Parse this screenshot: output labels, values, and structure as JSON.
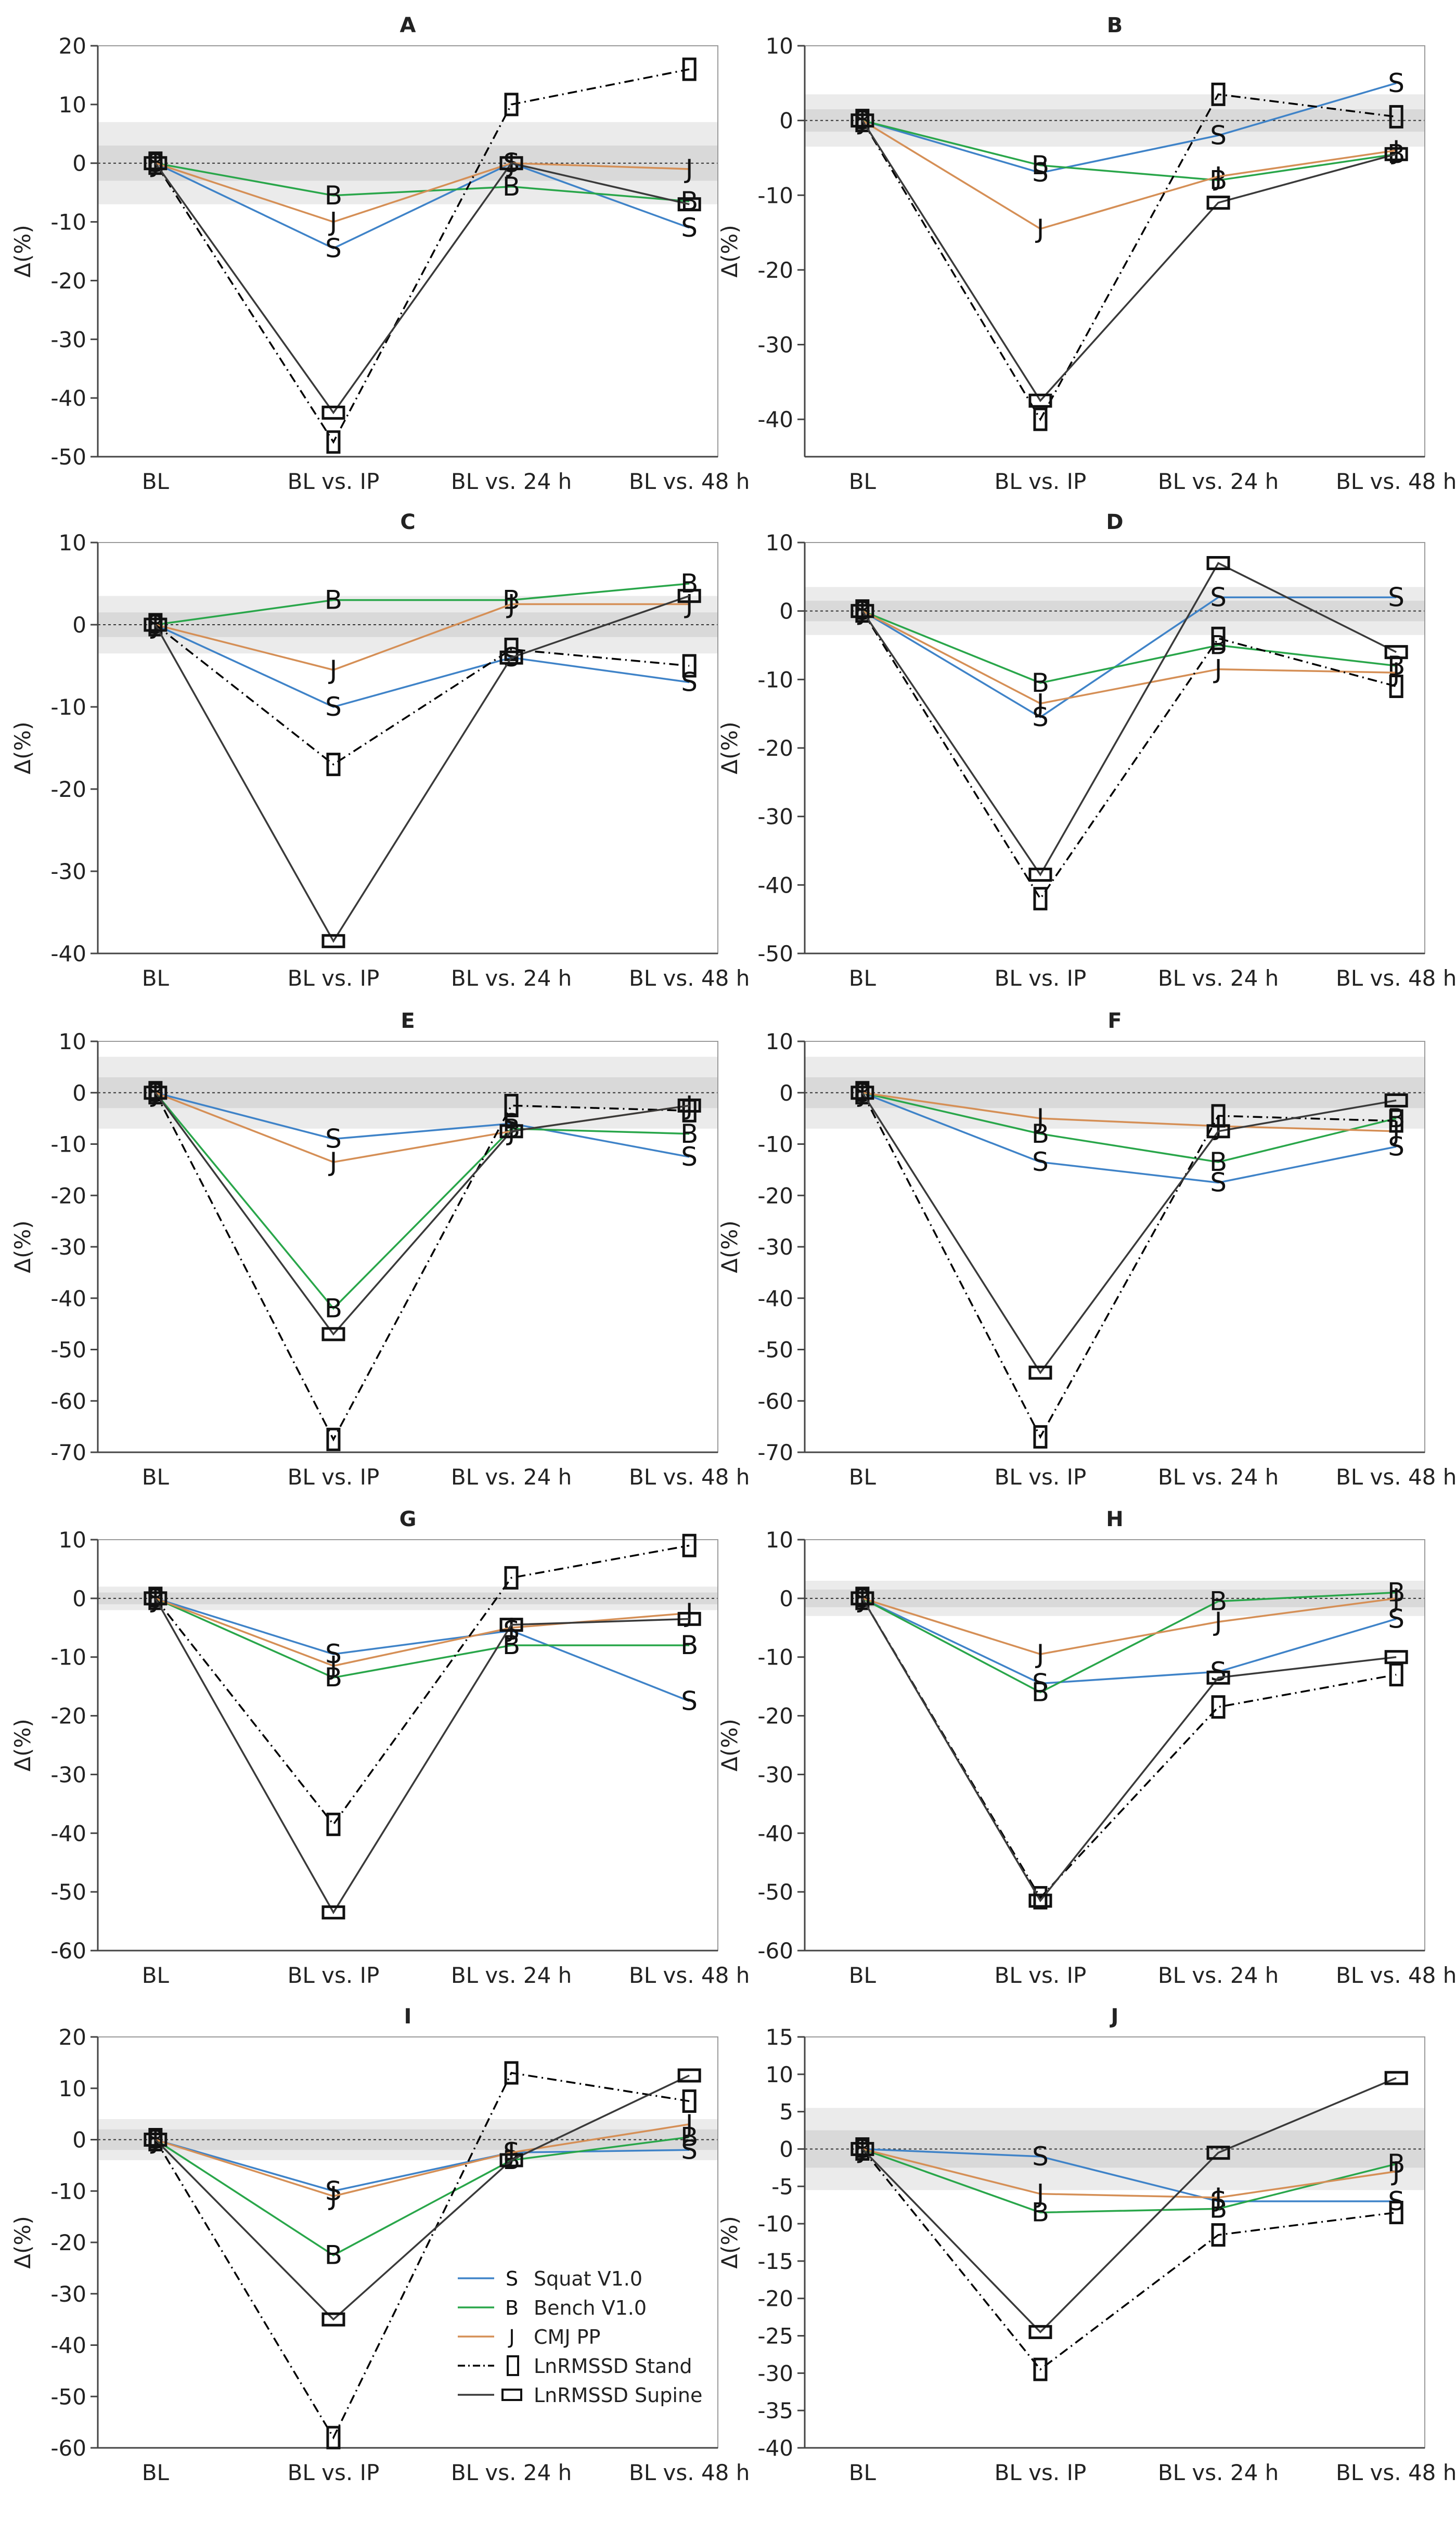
{
  "figure": {
    "categories": [
      "BL",
      "BL vs. IP",
      "BL vs. 24 h",
      "BL vs. 48 h"
    ],
    "ylabel": "Δ(%)",
    "series_styles": [
      {
        "key": "squat",
        "color": "#3f83c8",
        "marker": "S",
        "dash": ""
      },
      {
        "key": "bench",
        "color": "#29a64a",
        "marker": "B",
        "dash": ""
      },
      {
        "key": "cmj",
        "color": "#d58f56",
        "marker": "J",
        "dash": ""
      },
      {
        "key": "stand",
        "color": "#000000",
        "marker": "rect-v",
        "dash": "18,8,3,8"
      },
      {
        "key": "supine",
        "color": "#3a3a3a",
        "marker": "rect-h",
        "dash": ""
      }
    ],
    "legend": {
      "entries": [
        {
          "symbol": "S",
          "label": "Squat V1.0"
        },
        {
          "symbol": "B",
          "label": "Bench V1.0"
        },
        {
          "symbol": "J",
          "label": "CMJ PP"
        },
        {
          "symbol": "",
          "label": "LnRMSSD Stand"
        },
        {
          "symbol": "",
          "label": "LnRMSSD Supine"
        }
      ]
    },
    "colors": {
      "band_outer": "#ebebeb",
      "band_inner": "#d9d9d9",
      "axis": "#444444",
      "text": "#222222"
    }
  },
  "chart_data": [
    {
      "type": "line",
      "title": "A",
      "ylim": [
        -50,
        20
      ],
      "yticks": [
        20,
        10,
        0,
        -10,
        -20,
        -30,
        -40,
        -50
      ],
      "band": [
        -7,
        7
      ],
      "band_inner": [
        -3,
        3
      ],
      "series": [
        {
          "name": "Squat V1.0",
          "values": [
            0,
            -14.5,
            0,
            -11
          ]
        },
        {
          "name": "Bench V1.0",
          "values": [
            0,
            -5.5,
            -4,
            -6.5
          ]
        },
        {
          "name": "CMJ PP",
          "values": [
            0,
            -10,
            0,
            -1
          ]
        },
        {
          "name": "LnRMSSD Stand",
          "values": [
            0,
            -47.5,
            10,
            16
          ]
        },
        {
          "name": "LnRMSSD Supine",
          "values": [
            0,
            -42.5,
            0,
            -7
          ]
        }
      ]
    },
    {
      "type": "line",
      "title": "B",
      "ylim": [
        -45,
        10
      ],
      "yticks": [
        10,
        0,
        -10,
        -20,
        -30,
        -40
      ],
      "band": [
        -3.5,
        3.5
      ],
      "band_inner": [
        -1.5,
        1.5
      ],
      "series": [
        {
          "name": "Squat V1.0",
          "values": [
            0,
            -7,
            -2,
            5
          ]
        },
        {
          "name": "Bench V1.0",
          "values": [
            0,
            -6,
            -8,
            -4.5
          ]
        },
        {
          "name": "CMJ PP",
          "values": [
            0,
            -14.5,
            -7.5,
            -4
          ]
        },
        {
          "name": "LnRMSSD Stand",
          "values": [
            0,
            -40,
            3.5,
            0.5
          ]
        },
        {
          "name": "LnRMSSD Supine",
          "values": [
            0,
            -37.5,
            -11,
            -4.5
          ]
        }
      ]
    },
    {
      "type": "line",
      "title": "C",
      "ylim": [
        -40,
        10
      ],
      "yticks": [
        10,
        0,
        -10,
        -20,
        -30,
        -40
      ],
      "band": [
        -3.5,
        3.5
      ],
      "band_inner": [
        -1.5,
        1.5
      ],
      "series": [
        {
          "name": "Squat V1.0",
          "values": [
            0,
            -10,
            -4,
            -7
          ]
        },
        {
          "name": "Bench V1.0",
          "values": [
            0,
            3,
            3,
            5
          ]
        },
        {
          "name": "CMJ PP",
          "values": [
            0,
            -5.5,
            2.5,
            2.5
          ]
        },
        {
          "name": "LnRMSSD Stand",
          "values": [
            0,
            -17,
            -3,
            -5
          ]
        },
        {
          "name": "LnRMSSD Supine",
          "values": [
            0,
            -38.5,
            -4,
            3.5
          ]
        }
      ]
    },
    {
      "type": "line",
      "title": "D",
      "ylim": [
        -50,
        10
      ],
      "yticks": [
        10,
        0,
        -10,
        -20,
        -30,
        -40,
        -50
      ],
      "band": [
        -3.5,
        3.5
      ],
      "band_inner": [
        -1.5,
        1.5
      ],
      "series": [
        {
          "name": "Squat V1.0",
          "values": [
            0,
            -15.5,
            2,
            2
          ]
        },
        {
          "name": "Bench V1.0",
          "values": [
            0,
            -10.5,
            -5,
            -8
          ]
        },
        {
          "name": "CMJ PP",
          "values": [
            0,
            -13.5,
            -8.5,
            -9
          ]
        },
        {
          "name": "LnRMSSD Stand",
          "values": [
            0,
            -42,
            -4,
            -11
          ]
        },
        {
          "name": "LnRMSSD Supine",
          "values": [
            0,
            -38.5,
            7,
            -6
          ]
        }
      ]
    },
    {
      "type": "line",
      "title": "E",
      "ylim": [
        -70,
        10
      ],
      "yticks": [
        10,
        0,
        -10,
        -20,
        -30,
        -40,
        -50,
        -60,
        -70
      ],
      "band": [
        -7,
        7
      ],
      "band_inner": [
        -3,
        3
      ],
      "series": [
        {
          "name": "Squat V1.0",
          "values": [
            0,
            -9,
            -6,
            -12.5
          ]
        },
        {
          "name": "Bench V1.0",
          "values": [
            0,
            -42,
            -7,
            -8
          ]
        },
        {
          "name": "CMJ PP",
          "values": [
            0,
            -13.5,
            -7.5,
            -2.5
          ]
        },
        {
          "name": "LnRMSSD Stand",
          "values": [
            0,
            -67.5,
            -2.5,
            -3.5
          ]
        },
        {
          "name": "LnRMSSD Supine",
          "values": [
            0,
            -47,
            -7.5,
            -2.5
          ]
        }
      ]
    },
    {
      "type": "line",
      "title": "F",
      "ylim": [
        -70,
        10
      ],
      "yticks": [
        10,
        0,
        -10,
        -20,
        -30,
        -40,
        -50,
        -60,
        -70
      ],
      "band": [
        -7,
        7
      ],
      "band_inner": [
        -3,
        3
      ],
      "series": [
        {
          "name": "Squat V1.0",
          "values": [
            0,
            -13.5,
            -17.5,
            -10.5
          ]
        },
        {
          "name": "Bench V1.0",
          "values": [
            0,
            -8,
            -13.5,
            -5
          ]
        },
        {
          "name": "CMJ PP",
          "values": [
            0,
            -5,
            -6.5,
            -7.5
          ]
        },
        {
          "name": "LnRMSSD Stand",
          "values": [
            0,
            -67,
            -4.5,
            -5.5
          ]
        },
        {
          "name": "LnRMSSD Supine",
          "values": [
            0,
            -54.5,
            -7.5,
            -1.5
          ]
        }
      ]
    },
    {
      "type": "line",
      "title": "G",
      "ylim": [
        -60,
        10
      ],
      "yticks": [
        10,
        0,
        -10,
        -20,
        -30,
        -40,
        -50,
        -60
      ],
      "band": [
        -2,
        2
      ],
      "band_inner": [
        -1,
        1
      ],
      "series": [
        {
          "name": "Squat V1.0",
          "values": [
            0,
            -9.5,
            -5.5,
            -17.5
          ]
        },
        {
          "name": "Bench V1.0",
          "values": [
            0,
            -13.5,
            -8,
            -8
          ]
        },
        {
          "name": "CMJ PP",
          "values": [
            0,
            -11.5,
            -5,
            -2.5
          ]
        },
        {
          "name": "LnRMSSD Stand",
          "values": [
            0,
            -38.5,
            3.5,
            9
          ]
        },
        {
          "name": "LnRMSSD Supine",
          "values": [
            0,
            -53.5,
            -4.5,
            -3.5
          ]
        }
      ]
    },
    {
      "type": "line",
      "title": "H",
      "ylim": [
        -60,
        10
      ],
      "yticks": [
        10,
        0,
        -10,
        -20,
        -30,
        -40,
        -50,
        -60
      ],
      "band": [
        -3,
        3
      ],
      "band_inner": [
        -1.5,
        1.5
      ],
      "series": [
        {
          "name": "Squat V1.0",
          "values": [
            0,
            -14.5,
            -12.5,
            -3.5
          ]
        },
        {
          "name": "Bench V1.0",
          "values": [
            0,
            -16,
            -0.5,
            1
          ]
        },
        {
          "name": "CMJ PP",
          "values": [
            0,
            -9.5,
            -4,
            0
          ]
        },
        {
          "name": "LnRMSSD Stand",
          "values": [
            0,
            -51,
            -18.5,
            -13
          ]
        },
        {
          "name": "LnRMSSD Supine",
          "values": [
            0,
            -51.5,
            -13.5,
            -10
          ]
        }
      ]
    },
    {
      "type": "line",
      "title": "I",
      "ylim": [
        -60,
        20
      ],
      "yticks": [
        20,
        10,
        0,
        -10,
        -20,
        -30,
        -40,
        -50,
        -60
      ],
      "band": [
        -4,
        4
      ],
      "band_inner": [
        -2,
        2
      ],
      "series": [
        {
          "name": "Squat V1.0",
          "values": [
            0,
            -10,
            -2.5,
            -2
          ]
        },
        {
          "name": "Bench V1.0",
          "values": [
            0,
            -22.5,
            -4,
            0.5
          ]
        },
        {
          "name": "CMJ PP",
          "values": [
            0,
            -11,
            -2.5,
            3
          ]
        },
        {
          "name": "LnRMSSD Stand",
          "values": [
            0,
            -58,
            13,
            7.5
          ]
        },
        {
          "name": "LnRMSSD Supine",
          "values": [
            0,
            -35,
            -4,
            12.5
          ]
        }
      ]
    },
    {
      "type": "line",
      "title": "J",
      "ylim": [
        -40,
        15
      ],
      "yticks": [
        15,
        10,
        5,
        0,
        -5,
        -10,
        -15,
        -20,
        -25,
        -30,
        -35,
        -40
      ],
      "band": [
        -5.5,
        5.5
      ],
      "band_inner": [
        -2.5,
        2.5
      ],
      "series": [
        {
          "name": "Squat V1.0",
          "values": [
            0,
            -1,
            -7,
            -7
          ]
        },
        {
          "name": "Bench V1.0",
          "values": [
            0,
            -8.5,
            -8,
            -2
          ]
        },
        {
          "name": "CMJ PP",
          "values": [
            0,
            -6,
            -6.5,
            -3
          ]
        },
        {
          "name": "LnRMSSD Stand",
          "values": [
            0,
            -29.5,
            -11.5,
            -8.5
          ]
        },
        {
          "name": "LnRMSSD Supine",
          "values": [
            0,
            -24.5,
            -0.5,
            9.5
          ]
        }
      ]
    }
  ]
}
